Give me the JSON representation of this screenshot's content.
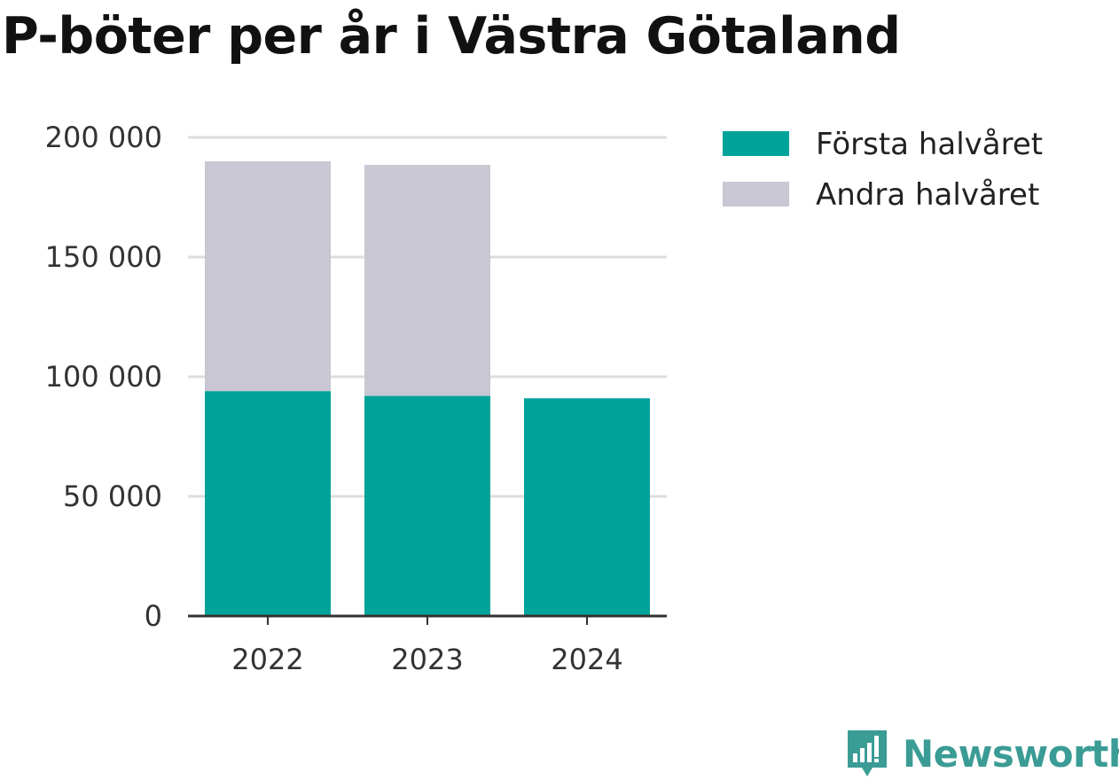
{
  "title": "P-böter per år i Västra Götaland",
  "brand": {
    "name": "Newsworthy",
    "color": "#3a9c95",
    "icon": "newsworthy-logo-icon"
  },
  "colors": {
    "first_half": "#00a39a",
    "second_half": "#c8c7d3",
    "grid": "#dddddd",
    "axis": "#333333"
  },
  "chart_data": {
    "type": "bar",
    "stacked": true,
    "categories": [
      "2022",
      "2023",
      "2024"
    ],
    "series": [
      {
        "name": "Första halvåret",
        "values": [
          94000,
          92000,
          91000
        ]
      },
      {
        "name": "Andra halvåret",
        "values": [
          96000,
          96500,
          0
        ]
      }
    ],
    "ylim": [
      0,
      200000
    ],
    "yticks": [
      0,
      50000,
      100000,
      150000,
      200000
    ],
    "ytick_labels": [
      "0",
      "50 000",
      "100 000",
      "150 000",
      "200 000"
    ],
    "grid": true,
    "legend": "top-right"
  }
}
